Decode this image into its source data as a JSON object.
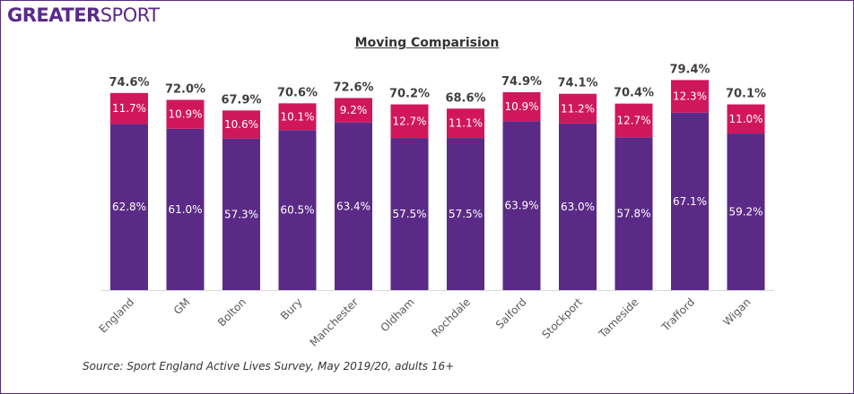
{
  "logo": {
    "bold": "GREATER",
    "regular": "SPORT"
  },
  "colors": {
    "active": "#5b2a86",
    "fairly_active": "#d0175c",
    "frame": "#5b2a86"
  },
  "chart_data": {
    "type": "bar",
    "stacked": true,
    "title": "Moving Comparision",
    "categories": [
      "England",
      "GM",
      "Bolton",
      "Bury",
      "Manchester",
      "Oldham",
      "Rochdale",
      "Salford",
      "Stockport",
      "Tameside",
      "Trafford",
      "Wigan"
    ],
    "series": [
      {
        "values": [
          62.8,
          61.0,
          57.3,
          60.5,
          63.4,
          57.5,
          57.5,
          63.9,
          63.0,
          57.8,
          67.1,
          59.2
        ],
        "labels": [
          "62.8%",
          "61.0%",
          "57.3%",
          "60.5%",
          "63.4%",
          "57.5%",
          "57.5%",
          "63.9%",
          "63.0%",
          "57.8%",
          "67.1%",
          "59.2%"
        ]
      },
      {
        "values": [
          11.7,
          10.9,
          10.6,
          10.1,
          9.2,
          12.7,
          11.1,
          10.9,
          11.2,
          12.7,
          12.3,
          11.0
        ],
        "labels": [
          "11.7%",
          "10.9%",
          "10.6%",
          "10.1%",
          "9.2%",
          "12.7%",
          "11.1%",
          "10.9%",
          "11.2%",
          "12.7%",
          "12.3%",
          "11.0%"
        ]
      }
    ],
    "totals": [
      74.6,
      72.0,
      67.9,
      70.6,
      72.6,
      70.2,
      68.6,
      74.9,
      74.1,
      70.4,
      79.4,
      70.1
    ],
    "total_labels": [
      "74.6%",
      "72.0%",
      "67.9%",
      "70.6%",
      "72.6%",
      "70.2%",
      "68.6%",
      "74.9%",
      "74.1%",
      "70.4%",
      "79.4%",
      "70.1%"
    ],
    "ylim": [
      0,
      85
    ],
    "grid": false,
    "legend": "none"
  },
  "source": "Source: Sport England Active Lives Survey, May 2019/20, adults 16+"
}
